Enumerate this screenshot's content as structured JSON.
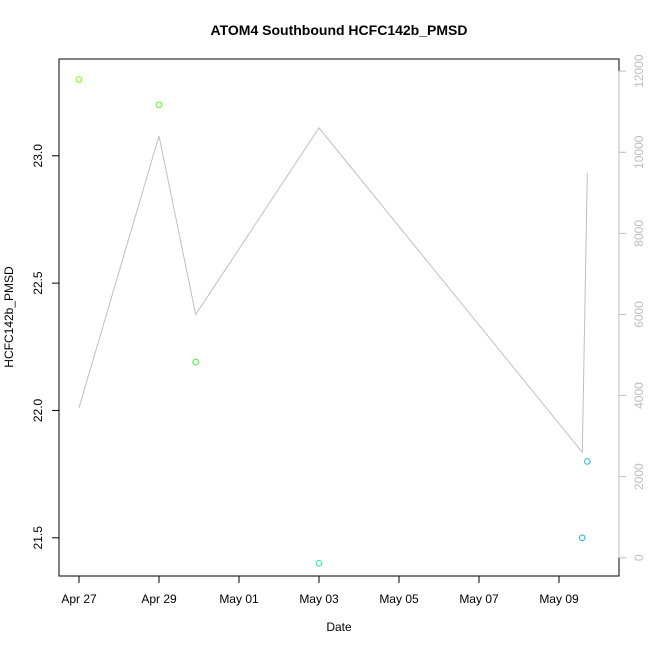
{
  "chart_data": {
    "type": "scatter",
    "title": "ATOM4 Southbound HCFC142b_PMSD",
    "xlabel": "Date",
    "ylabel": "HCFC142b_PMSD",
    "y2label": "",
    "xlim": [
      "2016-04-26T12:00",
      "2016-05-10T12:00"
    ],
    "ylim": [
      21.35,
      23.38
    ],
    "y2lim": [
      -450,
      12300
    ],
    "x_ticks": [
      {
        "date": "2016-04-27",
        "label": "Apr 27"
      },
      {
        "date": "2016-04-29",
        "label": "Apr 29"
      },
      {
        "date": "2016-05-01",
        "label": "May 01"
      },
      {
        "date": "2016-05-03",
        "label": "May 03"
      },
      {
        "date": "2016-05-05",
        "label": "May 05"
      },
      {
        "date": "2016-05-07",
        "label": "May 07"
      },
      {
        "date": "2016-05-09",
        "label": "May 09"
      }
    ],
    "y_ticks": [
      {
        "value": 21.5,
        "label": "21.5"
      },
      {
        "value": 22.0,
        "label": "22.0"
      },
      {
        "value": 22.5,
        "label": "22.5"
      },
      {
        "value": 23.0,
        "label": "23.0"
      }
    ],
    "y2_ticks": [
      {
        "value": 0,
        "label": "0"
      },
      {
        "value": 2000,
        "label": "2000"
      },
      {
        "value": 4000,
        "label": "4000"
      },
      {
        "value": 6000,
        "label": "6000"
      },
      {
        "value": 8000,
        "label": "8000"
      },
      {
        "value": 10000,
        "label": "10000"
      },
      {
        "value": 12000,
        "label": "12000"
      }
    ],
    "points": [
      {
        "x": "2016-04-27T00:00",
        "y": 23.3,
        "color": "#7CFC00"
      },
      {
        "x": "2016-04-29T00:00",
        "y": 23.2,
        "color": "#66EE22"
      },
      {
        "x": "2016-04-29T22:00",
        "y": 22.19,
        "color": "#44EE44"
      },
      {
        "x": "2016-05-03T00:00",
        "y": 21.4,
        "color": "#22EEAA"
      },
      {
        "x": "2016-05-09T14:00",
        "y": 21.5,
        "color": "#22AAEE"
      },
      {
        "x": "2016-05-09T17:00",
        "y": 21.8,
        "color": "#22BBEE"
      }
    ],
    "line": {
      "axis": "right",
      "color": "#c0c0c0",
      "points": [
        {
          "x": "2016-04-27T00:00",
          "y": 3700
        },
        {
          "x": "2016-04-29T00:00",
          "y": 10400
        },
        {
          "x": "2016-04-29T22:00",
          "y": 6000
        },
        {
          "x": "2016-05-03T00:00",
          "y": 10600
        },
        {
          "x": "2016-05-09T14:00",
          "y": 2600
        },
        {
          "x": "2016-05-09T17:00",
          "y": 9500
        }
      ]
    },
    "grid": false,
    "legend": "none"
  }
}
